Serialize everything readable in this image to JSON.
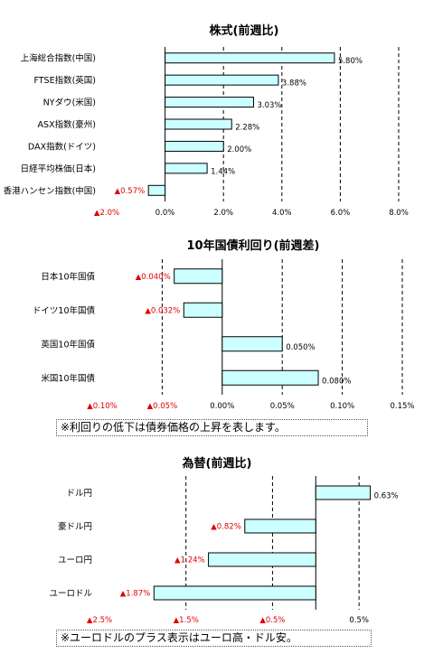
{
  "chart_data": [
    {
      "type": "bar",
      "orientation": "horizontal",
      "title": "株式(前週比)",
      "categories": [
        "上海総合指数(中国)",
        "FTSE指数(英国)",
        "NYダウ(米国)",
        "ASX指数(豪州)",
        "DAX指数(ドイツ)",
        "日経平均株価(日本)",
        "香港ハンセン指数(中国)"
      ],
      "values": [
        5.8,
        3.88,
        3.03,
        2.28,
        2.0,
        1.44,
        -0.57
      ],
      "value_labels": [
        "5.80%",
        "3.88%",
        "3.03%",
        "2.28%",
        "2.00%",
        "1.44%",
        "▲0.57%"
      ],
      "xlim": [
        -2.0,
        8.0
      ],
      "ticks": [
        -2,
        0,
        2,
        4,
        6,
        8
      ],
      "tick_labels": [
        "▲2.0%",
        "0.0%",
        "2.0%",
        "4.0%",
        "6.0%",
        "8.0%"
      ],
      "grid": true
    },
    {
      "type": "bar",
      "orientation": "horizontal",
      "title": "10年国債利回り(前週差)",
      "categories": [
        "日本10年国債",
        "ドイツ10年国債",
        "英国10年国債",
        "米国10年国債"
      ],
      "values": [
        -0.04,
        -0.032,
        0.05,
        0.08
      ],
      "value_labels": [
        "▲0.040%",
        "▲0.032%",
        "0.050%",
        "0.080%"
      ],
      "xlim": [
        -0.1,
        0.15
      ],
      "ticks": [
        -0.1,
        -0.05,
        0,
        0.05,
        0.1,
        0.15
      ],
      "tick_labels": [
        "▲0.10%",
        "▲0.05%",
        "0.00%",
        "0.05%",
        "0.10%",
        "0.15%"
      ],
      "grid": true,
      "note": "※利回りの低下は債券価格の上昇を表します。"
    },
    {
      "type": "bar",
      "orientation": "horizontal",
      "title": "為替(前週比)",
      "categories": [
        "ドル円",
        "豪ドル円",
        "ユーロ円",
        "ユーロドル"
      ],
      "values": [
        0.63,
        -0.82,
        -1.24,
        -1.87
      ],
      "value_labels": [
        "0.63%",
        "▲0.82%",
        "▲1.24%",
        "▲1.87%"
      ],
      "xlim": [
        -2.5,
        1.0
      ],
      "ticks": [
        -2.5,
        -1.5,
        -0.5,
        0.5
      ],
      "tick_labels": [
        "▲2.5%",
        "▲1.5%",
        "▲0.5%",
        "0.5%"
      ],
      "grid": true,
      "note": "※ユーロドルのプラス表示はユーロ高・ドル安。"
    }
  ],
  "colors": {
    "bar_fill": "#ccffff",
    "bar_stroke": "#000000",
    "negative_text": "#e00000"
  }
}
